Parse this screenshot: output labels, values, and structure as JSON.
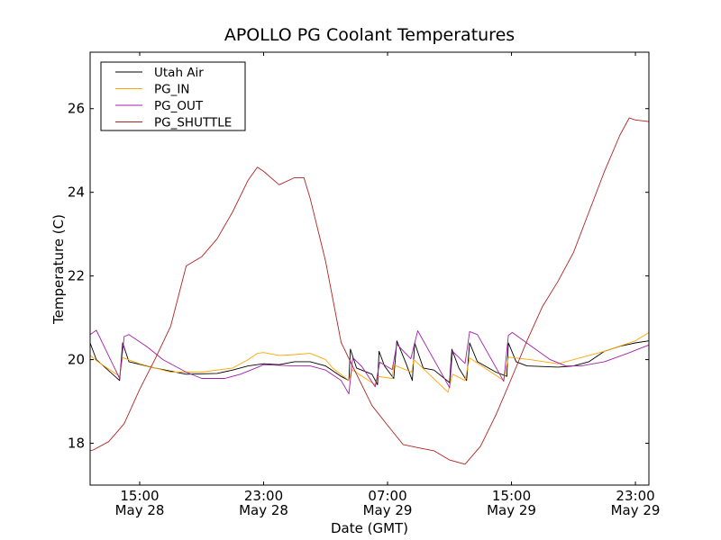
{
  "chart_data": {
    "type": "line",
    "title": "APOLLO PG Coolant Temperatures",
    "xlabel": "Date (GMT)",
    "ylabel": "Temperature (C)",
    "x_units": "hours since May 28 00:00 GMT",
    "xlim": [
      11.8,
      47.87
    ],
    "ylim": [
      17.0,
      27.35
    ],
    "grid": false,
    "legend_position": "top-left",
    "xticks": [
      {
        "value": 15,
        "time": "15:00",
        "date": "May 28"
      },
      {
        "value": 23,
        "time": "23:00",
        "date": "May 28"
      },
      {
        "value": 31,
        "time": "07:00",
        "date": "May 29"
      },
      {
        "value": 39,
        "time": "15:00",
        "date": "May 29"
      },
      {
        "value": 47,
        "time": "23:00",
        "date": "May 29"
      }
    ],
    "yticks": [
      {
        "value": 18,
        "label": "18"
      },
      {
        "value": 20,
        "label": "20"
      },
      {
        "value": 22,
        "label": "22"
      },
      {
        "value": 24,
        "label": "24"
      },
      {
        "value": 26,
        "label": "26"
      }
    ],
    "series": [
      {
        "name": "Utah Air",
        "color": "#000000",
        "points": [
          [
            11.8,
            20.4
          ],
          [
            12.2,
            20.0
          ],
          [
            13.7,
            19.5
          ],
          [
            13.9,
            20.4
          ],
          [
            14.3,
            19.95
          ],
          [
            16,
            19.8
          ],
          [
            18,
            19.65
          ],
          [
            20,
            19.67
          ],
          [
            21,
            19.75
          ],
          [
            22,
            19.85
          ],
          [
            23,
            19.9
          ],
          [
            24,
            19.88
          ],
          [
            25,
            19.95
          ],
          [
            26,
            19.95
          ],
          [
            27,
            19.85
          ],
          [
            28,
            19.6
          ],
          [
            28.5,
            19.5
          ],
          [
            28.6,
            20.25
          ],
          [
            29,
            19.8
          ],
          [
            30,
            19.65
          ],
          [
            30.35,
            19.4
          ],
          [
            30.45,
            20.2
          ],
          [
            30.8,
            19.85
          ],
          [
            31.4,
            19.55
          ],
          [
            31.6,
            20.45
          ],
          [
            32.2,
            19.9
          ],
          [
            32.6,
            19.5
          ],
          [
            32.75,
            20.4
          ],
          [
            33.3,
            19.8
          ],
          [
            34,
            19.75
          ],
          [
            35,
            19.45
          ],
          [
            35.15,
            20.25
          ],
          [
            35.6,
            19.8
          ],
          [
            36.1,
            19.5
          ],
          [
            36.3,
            20.4
          ],
          [
            36.8,
            19.95
          ],
          [
            38,
            19.7
          ],
          [
            38.7,
            19.6
          ],
          [
            38.8,
            20.4
          ],
          [
            39.3,
            19.95
          ],
          [
            40,
            19.85
          ],
          [
            42,
            19.82
          ],
          [
            43,
            19.85
          ],
          [
            44,
            19.95
          ],
          [
            45,
            20.2
          ],
          [
            46,
            20.32
          ],
          [
            47,
            20.4
          ],
          [
            47.87,
            20.45
          ]
        ]
      },
      {
        "name": "PG_IN",
        "color": "#ffa500",
        "points": [
          [
            11.8,
            20.1
          ],
          [
            12.3,
            19.95
          ],
          [
            13.7,
            19.6
          ],
          [
            13.9,
            20.05
          ],
          [
            15,
            19.9
          ],
          [
            17,
            19.7
          ],
          [
            19,
            19.7
          ],
          [
            21,
            19.8
          ],
          [
            22,
            20.0
          ],
          [
            22.6,
            20.15
          ],
          [
            23,
            20.17
          ],
          [
            24,
            20.1
          ],
          [
            25,
            20.12
          ],
          [
            26,
            20.15
          ],
          [
            27,
            20.0
          ],
          [
            27.45,
            19.8
          ],
          [
            28.5,
            19.5
          ],
          [
            28.7,
            19.76
          ],
          [
            30.2,
            19.4
          ],
          [
            30.35,
            19.6
          ],
          [
            31.3,
            19.55
          ],
          [
            31.4,
            19.87
          ],
          [
            32.55,
            19.7
          ],
          [
            32.7,
            20.0
          ],
          [
            34.9,
            19.22
          ],
          [
            35.2,
            19.65
          ],
          [
            36,
            19.5
          ],
          [
            36.3,
            20.04
          ],
          [
            38.5,
            19.5
          ],
          [
            38.8,
            20.06
          ],
          [
            40.2,
            20.0
          ],
          [
            42,
            19.9
          ],
          [
            43,
            20.0
          ],
          [
            45,
            20.2
          ],
          [
            47,
            20.45
          ],
          [
            47.87,
            20.65
          ]
        ]
      },
      {
        "name": "PG_OUT",
        "color": "#a020a8",
        "points": [
          [
            11.8,
            20.6
          ],
          [
            12.2,
            20.7
          ],
          [
            13.7,
            19.55
          ],
          [
            14,
            20.55
          ],
          [
            14.3,
            20.6
          ],
          [
            15.5,
            20.3
          ],
          [
            16.5,
            20.0
          ],
          [
            18,
            19.7
          ],
          [
            19,
            19.55
          ],
          [
            20.5,
            19.55
          ],
          [
            21.5,
            19.65
          ],
          [
            22.5,
            19.8
          ],
          [
            23,
            19.88
          ],
          [
            25,
            19.85
          ],
          [
            26,
            19.85
          ],
          [
            27,
            19.75
          ],
          [
            28,
            19.5
          ],
          [
            28.5,
            19.18
          ],
          [
            28.75,
            20.05
          ],
          [
            29.35,
            19.83
          ],
          [
            30.2,
            19.35
          ],
          [
            30.5,
            19.94
          ],
          [
            31.3,
            19.76
          ],
          [
            31.6,
            20.37
          ],
          [
            32.5,
            20.02
          ],
          [
            32.95,
            20.69
          ],
          [
            35,
            19.33
          ],
          [
            35.2,
            20.2
          ],
          [
            36,
            19.91
          ],
          [
            36.3,
            20.67
          ],
          [
            36.8,
            20.6
          ],
          [
            38.5,
            19.48
          ],
          [
            38.8,
            20.58
          ],
          [
            39.05,
            20.65
          ],
          [
            40.2,
            20.34
          ],
          [
            41.5,
            20.0
          ],
          [
            42.5,
            19.85
          ],
          [
            43.5,
            19.85
          ],
          [
            45,
            19.95
          ],
          [
            46.5,
            20.15
          ],
          [
            47.87,
            20.35
          ]
        ]
      },
      {
        "name": "PG_SHUTTLE",
        "color": "#b22222",
        "points": [
          [
            11.8,
            17.82
          ],
          [
            12,
            17.84
          ],
          [
            13,
            18.04
          ],
          [
            14,
            18.47
          ],
          [
            15,
            19.29
          ],
          [
            16,
            20.02
          ],
          [
            17,
            20.8
          ],
          [
            18,
            22.24
          ],
          [
            19,
            22.46
          ],
          [
            20,
            22.89
          ],
          [
            21,
            23.53
          ],
          [
            22,
            24.29
          ],
          [
            22.6,
            24.6
          ],
          [
            23,
            24.5
          ],
          [
            24,
            24.18
          ],
          [
            25,
            24.35
          ],
          [
            25.6,
            24.35
          ],
          [
            26,
            23.86
          ],
          [
            27,
            22.35
          ],
          [
            28,
            20.41
          ],
          [
            29,
            19.65
          ],
          [
            30,
            18.9
          ],
          [
            31,
            18.43
          ],
          [
            32,
            17.97
          ],
          [
            33,
            17.89
          ],
          [
            34,
            17.82
          ],
          [
            35,
            17.6
          ],
          [
            36,
            17.5
          ],
          [
            37,
            17.93
          ],
          [
            38,
            18.68
          ],
          [
            39,
            19.55
          ],
          [
            40,
            20.45
          ],
          [
            41,
            21.27
          ],
          [
            42,
            21.87
          ],
          [
            43,
            22.56
          ],
          [
            44,
            23.53
          ],
          [
            45,
            24.5
          ],
          [
            46,
            25.37
          ],
          [
            46.6,
            25.78
          ],
          [
            47,
            25.73
          ],
          [
            47.87,
            25.69
          ]
        ]
      }
    ]
  }
}
